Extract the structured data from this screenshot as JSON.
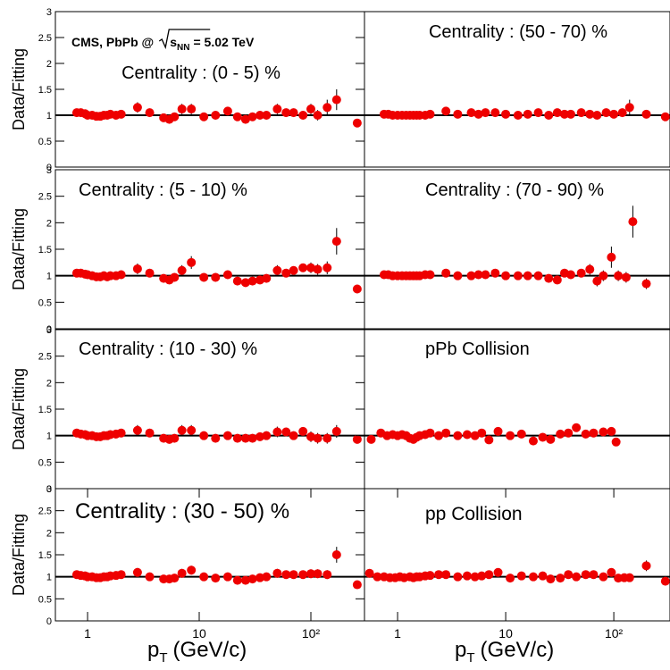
{
  "chart_data": [
    {
      "type": "scatter",
      "title": "Centrality : (0 - 5) %",
      "color": "#ee0000",
      "log_x": true,
      "hline": 1,
      "annotation": {
        "prefix": "CMS, PbPb @",
        "sqrt": "s",
        "sub": "NN",
        "suffix": "= 5.02 TeV"
      },
      "ylabel": "Data/Fitting",
      "xlim": [
        0.515,
        302
      ],
      "ylim": [
        0,
        3
      ],
      "yticks": [
        0,
        0.5,
        1,
        1.5,
        2,
        2.5,
        3
      ],
      "x": [
        0.8,
        0.87,
        0.95,
        1.0,
        1.1,
        1.2,
        1.3,
        1.4,
        1.5,
        1.6,
        1.8,
        2.0,
        2.8,
        3.6,
        4.8,
        5.4,
        6.0,
        7.0,
        8.5,
        11,
        14,
        18,
        22,
        26,
        30,
        35,
        40,
        50,
        60,
        70,
        85,
        100,
        115,
        140,
        170,
        260
      ],
      "values": [
        1.05,
        1.05,
        1.03,
        1.0,
        1.0,
        0.98,
        0.98,
        1.0,
        1.0,
        1.02,
        1.0,
        1.02,
        1.15,
        1.05,
        0.95,
        0.92,
        0.97,
        1.12,
        1.12,
        0.97,
        1.0,
        1.08,
        0.97,
        0.92,
        0.97,
        1.0,
        1.0,
        1.12,
        1.05,
        1.05,
        1.0,
        1.12,
        1.0,
        1.15,
        1.3,
        0.85
      ],
      "errors": [
        0.08,
        0.08,
        0.08,
        0.08,
        0.08,
        0.08,
        0.08,
        0.08,
        0.08,
        0.08,
        0.08,
        0.08,
        0.1,
        0.08,
        0.08,
        0.08,
        0.08,
        0.1,
        0.1,
        0.08,
        0.08,
        0.08,
        0.08,
        0.08,
        0.08,
        0.08,
        0.08,
        0.1,
        0.08,
        0.08,
        0.08,
        0.1,
        0.1,
        0.15,
        0.2,
        0.08
      ]
    },
    {
      "type": "scatter",
      "title": "Centrality : (50 - 70) %",
      "color": "#ee0000",
      "log_x": true,
      "hline": 1,
      "xlim": [
        0.494,
        331
      ],
      "ylim": [
        0,
        3
      ],
      "x": [
        0.75,
        0.82,
        0.9,
        1.0,
        1.1,
        1.2,
        1.3,
        1.4,
        1.5,
        1.6,
        1.8,
        2.0,
        2.8,
        3.6,
        4.8,
        5.6,
        6.5,
        8,
        10,
        13,
        16,
        20,
        25,
        30,
        35,
        40,
        50,
        60,
        70,
        85,
        100,
        120,
        140,
        200,
        300
      ],
      "values": [
        1.02,
        1.02,
        1.0,
        1.0,
        1.0,
        1.0,
        1.0,
        1.0,
        1.0,
        1.0,
        1.0,
        1.02,
        1.08,
        1.02,
        1.05,
        1.02,
        1.05,
        1.05,
        1.02,
        1.0,
        1.02,
        1.05,
        1.0,
        1.05,
        1.02,
        1.02,
        1.05,
        1.02,
        1.0,
        1.05,
        1.02,
        1.05,
        1.15,
        1.02,
        0.97
      ],
      "errors": [
        0.06,
        0.06,
        0.06,
        0.06,
        0.06,
        0.06,
        0.06,
        0.06,
        0.06,
        0.06,
        0.06,
        0.06,
        0.08,
        0.06,
        0.06,
        0.06,
        0.06,
        0.06,
        0.06,
        0.06,
        0.06,
        0.06,
        0.06,
        0.06,
        0.06,
        0.06,
        0.08,
        0.06,
        0.06,
        0.08,
        0.08,
        0.08,
        0.15,
        0.08,
        0.06
      ]
    },
    {
      "type": "scatter",
      "title": "Centrality : (5 - 10) %",
      "color": "#ee0000",
      "log_x": true,
      "hline": 1,
      "ylabel": "Data/Fitting",
      "xlim": [
        0.515,
        302
      ],
      "ylim": [
        0,
        3
      ],
      "yticks": [
        0,
        0.5,
        1,
        1.5,
        2,
        2.5,
        3
      ],
      "x": [
        0.8,
        0.87,
        0.95,
        1.0,
        1.1,
        1.2,
        1.3,
        1.4,
        1.5,
        1.6,
        1.8,
        2.0,
        2.8,
        3.6,
        4.8,
        5.4,
        6.0,
        7.0,
        8.5,
        11,
        14,
        18,
        22,
        26,
        30,
        35,
        40,
        50,
        60,
        70,
        85,
        100,
        115,
        140,
        170,
        260
      ],
      "values": [
        1.05,
        1.05,
        1.03,
        1.02,
        1.0,
        0.98,
        0.98,
        1.0,
        0.98,
        1.0,
        1.0,
        1.02,
        1.13,
        1.05,
        0.95,
        0.92,
        0.97,
        1.1,
        1.25,
        0.97,
        0.97,
        1.02,
        0.9,
        0.87,
        0.9,
        0.92,
        0.95,
        1.1,
        1.05,
        1.1,
        1.15,
        1.15,
        1.12,
        1.15,
        1.65,
        0.75
      ],
      "errors": [
        0.08,
        0.08,
        0.08,
        0.08,
        0.08,
        0.08,
        0.08,
        0.08,
        0.08,
        0.08,
        0.08,
        0.08,
        0.1,
        0.08,
        0.08,
        0.08,
        0.08,
        0.1,
        0.12,
        0.08,
        0.08,
        0.08,
        0.08,
        0.08,
        0.08,
        0.08,
        0.08,
        0.1,
        0.08,
        0.08,
        0.08,
        0.1,
        0.1,
        0.12,
        0.25,
        0.08
      ]
    },
    {
      "type": "scatter",
      "title": "Centrality : (70 - 90) %",
      "color": "#ee0000",
      "log_x": true,
      "hline": 1,
      "xlim": [
        0.494,
        331
      ],
      "ylim": [
        0,
        3
      ],
      "x": [
        0.75,
        0.82,
        0.9,
        1.0,
        1.1,
        1.2,
        1.3,
        1.4,
        1.5,
        1.6,
        1.8,
        2.0,
        2.8,
        3.6,
        4.8,
        5.6,
        6.5,
        8,
        10,
        13,
        16,
        20,
        25,
        30,
        35,
        40,
        50,
        60,
        70,
        80,
        95,
        110,
        130,
        150,
        200
      ],
      "values": [
        1.02,
        1.02,
        1.0,
        1.0,
        1.0,
        1.0,
        1.0,
        1.0,
        1.0,
        1.0,
        1.02,
        1.02,
        1.05,
        1.0,
        1.0,
        1.02,
        1.02,
        1.05,
        1.0,
        1.0,
        1.0,
        1.0,
        0.95,
        0.92,
        1.05,
        1.02,
        1.05,
        1.12,
        0.9,
        1.0,
        1.35,
        1.0,
        0.97,
        2.02,
        0.85
      ],
      "errors": [
        0.06,
        0.06,
        0.06,
        0.06,
        0.06,
        0.06,
        0.06,
        0.06,
        0.06,
        0.06,
        0.06,
        0.06,
        0.08,
        0.06,
        0.06,
        0.06,
        0.06,
        0.06,
        0.06,
        0.06,
        0.06,
        0.06,
        0.06,
        0.08,
        0.08,
        0.08,
        0.08,
        0.1,
        0.1,
        0.1,
        0.2,
        0.1,
        0.1,
        0.3,
        0.1
      ]
    },
    {
      "type": "scatter",
      "title": "Centrality : (10 - 30) %",
      "color": "#ee0000",
      "log_x": true,
      "hline": 1,
      "ylabel": "Data/Fitting",
      "xlim": [
        0.515,
        302
      ],
      "ylim": [
        0,
        3
      ],
      "yticks": [
        0,
        0.5,
        1,
        1.5,
        2,
        2.5,
        3
      ],
      "x": [
        0.8,
        0.87,
        0.95,
        1.0,
        1.1,
        1.2,
        1.3,
        1.4,
        1.5,
        1.6,
        1.8,
        2.0,
        2.8,
        3.6,
        4.8,
        5.4,
        6.0,
        7.0,
        8.5,
        11,
        14,
        18,
        22,
        26,
        30,
        35,
        40,
        50,
        60,
        70,
        85,
        100,
        115,
        140,
        170,
        260
      ],
      "values": [
        1.05,
        1.03,
        1.02,
        1.0,
        1.0,
        0.98,
        0.98,
        1.0,
        1.0,
        1.02,
        1.03,
        1.05,
        1.1,
        1.05,
        0.95,
        0.93,
        0.95,
        1.1,
        1.1,
        1.0,
        0.95,
        1.0,
        0.95,
        0.95,
        0.95,
        0.98,
        1.0,
        1.07,
        1.07,
        1.0,
        1.08,
        0.98,
        0.95,
        0.95,
        1.08,
        0.93
      ],
      "errors": [
        0.08,
        0.08,
        0.08,
        0.08,
        0.08,
        0.08,
        0.08,
        0.08,
        0.08,
        0.08,
        0.08,
        0.08,
        0.1,
        0.08,
        0.08,
        0.08,
        0.08,
        0.1,
        0.1,
        0.08,
        0.08,
        0.08,
        0.08,
        0.08,
        0.08,
        0.08,
        0.08,
        0.1,
        0.08,
        0.08,
        0.08,
        0.1,
        0.1,
        0.1,
        0.12,
        0.08
      ]
    },
    {
      "type": "scatter",
      "title": "pPb Collision",
      "color": "#ee0000",
      "log_x": true,
      "hline": 1,
      "xlim": [
        0.494,
        331
      ],
      "ylim": [
        0,
        3
      ],
      "x": [
        0.57,
        0.7,
        0.8,
        0.9,
        1.0,
        1.1,
        1.2,
        1.3,
        1.4,
        1.5,
        1.6,
        1.8,
        2.0,
        2.4,
        2.8,
        3.6,
        4.4,
        5.2,
        6.0,
        7.0,
        8.5,
        11,
        14,
        18,
        22,
        26,
        32,
        38,
        45,
        55,
        65,
        80,
        95,
        105
      ],
      "values": [
        0.93,
        1.05,
        1.0,
        1.02,
        1.0,
        1.02,
        1.0,
        0.95,
        0.93,
        0.97,
        1.0,
        1.02,
        1.05,
        1.0,
        1.05,
        1.0,
        1.02,
        1.0,
        1.05,
        0.92,
        1.08,
        1.0,
        1.03,
        0.9,
        0.97,
        0.93,
        1.03,
        1.05,
        1.15,
        1.03,
        1.05,
        1.07,
        1.08,
        0.88
      ],
      "errors": [
        0.06,
        0.06,
        0.06,
        0.06,
        0.06,
        0.06,
        0.06,
        0.06,
        0.06,
        0.06,
        0.06,
        0.06,
        0.06,
        0.06,
        0.06,
        0.06,
        0.06,
        0.06,
        0.06,
        0.06,
        0.06,
        0.06,
        0.06,
        0.06,
        0.06,
        0.06,
        0.06,
        0.06,
        0.08,
        0.06,
        0.06,
        0.08,
        0.08,
        0.06
      ]
    },
    {
      "type": "scatter",
      "title": "Centrality : (30 - 50) %",
      "color": "#ee0000",
      "log_x": true,
      "hline": 1,
      "ylabel": "Data/Fitting",
      "xlim": [
        0.515,
        302
      ],
      "ylim": [
        0,
        3
      ],
      "yticks": [
        0,
        0.5,
        1,
        1.5,
        2,
        2.5,
        3
      ],
      "xticks": [
        1,
        10,
        {
          "value": 100,
          "label": "10²"
        }
      ],
      "xlabel": {
        "main": "p",
        "sub": "T",
        "unit": "(GeV/c)"
      },
      "x": [
        0.8,
        0.87,
        0.95,
        1.0,
        1.1,
        1.2,
        1.3,
        1.4,
        1.5,
        1.6,
        1.8,
        2.0,
        2.8,
        3.6,
        4.8,
        5.4,
        6.0,
        7.0,
        8.5,
        11,
        14,
        18,
        22,
        26,
        30,
        35,
        40,
        50,
        60,
        70,
        85,
        100,
        115,
        140,
        170,
        260
      ],
      "values": [
        1.05,
        1.03,
        1.02,
        1.0,
        1.0,
        0.98,
        0.98,
        1.0,
        1.0,
        1.02,
        1.03,
        1.05,
        1.1,
        1.0,
        0.95,
        0.95,
        0.97,
        1.08,
        1.15,
        1.0,
        0.97,
        1.0,
        0.92,
        0.92,
        0.95,
        0.98,
        1.0,
        1.08,
        1.05,
        1.05,
        1.05,
        1.07,
        1.07,
        1.05,
        1.5,
        0.82
      ],
      "errors": [
        0.08,
        0.08,
        0.08,
        0.08,
        0.08,
        0.08,
        0.08,
        0.08,
        0.08,
        0.08,
        0.08,
        0.08,
        0.1,
        0.08,
        0.08,
        0.08,
        0.08,
        0.1,
        0.1,
        0.08,
        0.08,
        0.08,
        0.08,
        0.08,
        0.08,
        0.08,
        0.08,
        0.1,
        0.08,
        0.08,
        0.08,
        0.1,
        0.1,
        0.1,
        0.18,
        0.08
      ]
    },
    {
      "type": "scatter",
      "title": "pp Collision",
      "color": "#ee0000",
      "log_x": true,
      "hline": 1,
      "xlim": [
        0.494,
        331
      ],
      "ylim": [
        0,
        3
      ],
      "xticks": [
        1,
        10,
        {
          "value": 100,
          "label": "10²"
        }
      ],
      "xlabel": {
        "main": "p",
        "sub": "T",
        "unit": "(GeV/c)"
      },
      "x": [
        0.55,
        0.65,
        0.75,
        0.85,
        0.95,
        1.05,
        1.15,
        1.3,
        1.4,
        1.5,
        1.6,
        1.8,
        2.0,
        2.4,
        2.8,
        3.6,
        4.4,
        5.2,
        6.0,
        7.0,
        8.5,
        11,
        14,
        18,
        22,
        26,
        32,
        38,
        45,
        55,
        65,
        80,
        95,
        110,
        125,
        140,
        200,
        300
      ],
      "values": [
        1.08,
        1.0,
        1.0,
        0.98,
        0.98,
        1.0,
        0.98,
        1.0,
        0.98,
        1.0,
        1.0,
        1.02,
        1.03,
        1.05,
        1.05,
        1.0,
        1.02,
        1.0,
        1.02,
        1.05,
        1.1,
        0.97,
        1.02,
        1.0,
        1.02,
        0.95,
        0.97,
        1.05,
        1.0,
        1.05,
        1.05,
        1.0,
        1.1,
        0.97,
        0.98,
        0.98,
        1.25,
        0.9
      ],
      "errors": [
        0.05,
        0.05,
        0.05,
        0.05,
        0.05,
        0.05,
        0.05,
        0.05,
        0.05,
        0.05,
        0.05,
        0.05,
        0.05,
        0.05,
        0.05,
        0.05,
        0.05,
        0.05,
        0.05,
        0.05,
        0.06,
        0.05,
        0.05,
        0.05,
        0.05,
        0.05,
        0.05,
        0.05,
        0.05,
        0.06,
        0.06,
        0.06,
        0.06,
        0.06,
        0.06,
        0.06,
        0.12,
        0.06
      ]
    }
  ]
}
